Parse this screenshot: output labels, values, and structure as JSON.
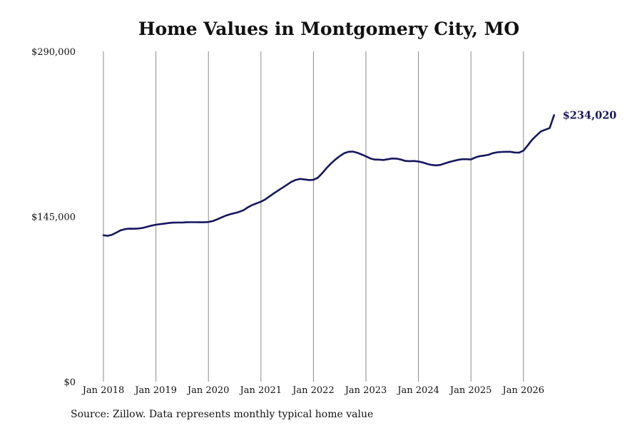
{
  "chart_data": {
    "type": "line",
    "title": "Home Values in Montgomery City, MO",
    "xlabel": "",
    "ylabel": "",
    "source": "Source: Zillow. Data represents monthly typical home value",
    "ylim": [
      0,
      290000
    ],
    "xlim": [
      "2018-01",
      "2026-08"
    ],
    "y_ticks": [
      {
        "value": 0,
        "label": "$0"
      },
      {
        "value": 145000,
        "label": "$145,000"
      },
      {
        "value": 290000,
        "label": "$290,000"
      }
    ],
    "x_ticks": [
      {
        "value": "2018-01",
        "label": "Jan 2018"
      },
      {
        "value": "2019-01",
        "label": "Jan 2019"
      },
      {
        "value": "2020-01",
        "label": "Jan 2020"
      },
      {
        "value": "2021-01",
        "label": "Jan 2021"
      },
      {
        "value": "2022-01",
        "label": "Jan 2022"
      },
      {
        "value": "2023-01",
        "label": "Jan 2023"
      },
      {
        "value": "2024-01",
        "label": "Jan 2024"
      },
      {
        "value": "2025-01",
        "label": "Jan 2025"
      },
      {
        "value": "2026-01",
        "label": "Jan 2026"
      }
    ],
    "grid": "vertical",
    "line_color": "#16165e",
    "end_label": "$234,020",
    "series": [
      {
        "points": [
          [
            "2018-01",
            128500
          ],
          [
            "2018-02",
            128000
          ],
          [
            "2018-03",
            129000
          ],
          [
            "2018-04",
            131000
          ],
          [
            "2018-05",
            133000
          ],
          [
            "2018-06",
            134000
          ],
          [
            "2018-07",
            134300
          ],
          [
            "2018-08",
            134200
          ],
          [
            "2018-09",
            134500
          ],
          [
            "2018-10",
            135000
          ],
          [
            "2018-11",
            136000
          ],
          [
            "2018-12",
            137000
          ],
          [
            "2019-01",
            137800
          ],
          [
            "2019-02",
            138300
          ],
          [
            "2019-03",
            138800
          ],
          [
            "2019-04",
            139300
          ],
          [
            "2019-05",
            139600
          ],
          [
            "2019-06",
            139700
          ],
          [
            "2019-07",
            139700
          ],
          [
            "2019-08",
            139900
          ],
          [
            "2019-09",
            140000
          ],
          [
            "2019-10",
            140000
          ],
          [
            "2019-11",
            139900
          ],
          [
            "2019-12",
            139900
          ],
          [
            "2020-01",
            140200
          ],
          [
            "2020-02",
            141000
          ],
          [
            "2020-03",
            142500
          ],
          [
            "2020-04",
            144200
          ],
          [
            "2020-05",
            145800
          ],
          [
            "2020-06",
            147000
          ],
          [
            "2020-07",
            148000
          ],
          [
            "2020-08",
            149000
          ],
          [
            "2020-09",
            150500
          ],
          [
            "2020-10",
            153000
          ],
          [
            "2020-11",
            155000
          ],
          [
            "2020-12",
            156500
          ],
          [
            "2021-01",
            158000
          ],
          [
            "2021-02",
            160000
          ],
          [
            "2021-03",
            162800
          ],
          [
            "2021-04",
            165500
          ],
          [
            "2021-05",
            168000
          ],
          [
            "2021-06",
            170500
          ],
          [
            "2021-07",
            173000
          ],
          [
            "2021-08",
            175500
          ],
          [
            "2021-09",
            177200
          ],
          [
            "2021-10",
            178000
          ],
          [
            "2021-11",
            177500
          ],
          [
            "2021-12",
            177000
          ],
          [
            "2022-01",
            177200
          ],
          [
            "2022-02",
            179000
          ],
          [
            "2022-03",
            183000
          ],
          [
            "2022-04",
            187500
          ],
          [
            "2022-05",
            191500
          ],
          [
            "2022-06",
            195000
          ],
          [
            "2022-07",
            198000
          ],
          [
            "2022-08",
            200500
          ],
          [
            "2022-09",
            201800
          ],
          [
            "2022-10",
            202000
          ],
          [
            "2022-11",
            201000
          ],
          [
            "2022-12",
            199500
          ],
          [
            "2023-01",
            197800
          ],
          [
            "2023-02",
            196000
          ],
          [
            "2023-03",
            195000
          ],
          [
            "2023-04",
            194900
          ],
          [
            "2023-05",
            194600
          ],
          [
            "2023-06",
            195300
          ],
          [
            "2023-07",
            195900
          ],
          [
            "2023-08",
            195800
          ],
          [
            "2023-09",
            195000
          ],
          [
            "2023-10",
            193800
          ],
          [
            "2023-11",
            193600
          ],
          [
            "2023-12",
            193700
          ],
          [
            "2024-01",
            193300
          ],
          [
            "2024-02",
            192400
          ],
          [
            "2024-03",
            191200
          ],
          [
            "2024-04",
            190300
          ],
          [
            "2024-05",
            189900
          ],
          [
            "2024-06",
            190300
          ],
          [
            "2024-07",
            191600
          ],
          [
            "2024-08",
            192800
          ],
          [
            "2024-09",
            193800
          ],
          [
            "2024-10",
            194700
          ],
          [
            "2024-11",
            195300
          ],
          [
            "2024-12",
            195300
          ],
          [
            "2025-01",
            195100
          ],
          [
            "2025-02",
            196800
          ],
          [
            "2025-03",
            198000
          ],
          [
            "2025-04",
            198500
          ],
          [
            "2025-05",
            199200
          ],
          [
            "2025-06",
            200600
          ],
          [
            "2025-07",
            201400
          ],
          [
            "2025-08",
            201700
          ],
          [
            "2025-09",
            201800
          ],
          [
            "2025-10",
            201800
          ],
          [
            "2025-11",
            201200
          ],
          [
            "2025-12",
            201100
          ],
          [
            "2026-01",
            202800
          ],
          [
            "2026-02",
            207500
          ],
          [
            "2026-03",
            212500
          ],
          [
            "2026-04",
            216200
          ],
          [
            "2026-05",
            219700
          ],
          [
            "2026-06",
            221200
          ],
          [
            "2026-07",
            222700
          ],
          [
            "2026-08",
            234020
          ]
        ]
      }
    ]
  }
}
